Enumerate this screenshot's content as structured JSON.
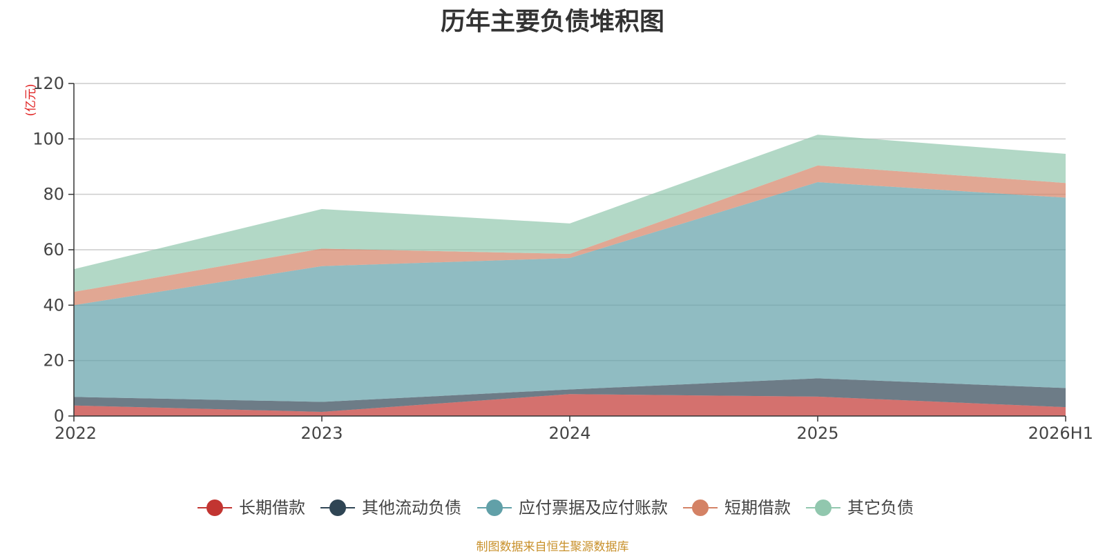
{
  "title": "历年主要负债堆积图",
  "footer": "制图数据来自恒生聚源数据库",
  "chart_data": {
    "type": "area",
    "stacked": true,
    "title": "历年主要负债堆积图",
    "ylabel": "(亿元)",
    "xlabel": "",
    "categories": [
      "2022",
      "2023",
      "2024",
      "2025",
      "2026H1"
    ],
    "ylim": [
      0,
      120
    ],
    "yticks": [
      0,
      20,
      40,
      60,
      80,
      100,
      120
    ],
    "grid": true,
    "legend_position": "bottom",
    "series": [
      {
        "name": "长期借款",
        "color": "#c23531",
        "values": [
          3.8,
          1.5,
          7.9,
          7.0,
          3.2
        ]
      },
      {
        "name": "其他流动负债",
        "color": "#2f4554",
        "values": [
          3.1,
          3.6,
          1.7,
          6.6,
          6.9
        ]
      },
      {
        "name": "应付票据及应付账款",
        "color": "#61a0a8",
        "values": [
          33.1,
          49.0,
          47.4,
          70.8,
          68.7
        ]
      },
      {
        "name": "短期借款",
        "color": "#d48265",
        "values": [
          4.8,
          6.3,
          1.5,
          6.0,
          5.3
        ]
      },
      {
        "name": "其它负债",
        "color": "#91c7ae",
        "values": [
          8.2,
          14.3,
          11.0,
          11.1,
          10.5
        ]
      }
    ]
  }
}
